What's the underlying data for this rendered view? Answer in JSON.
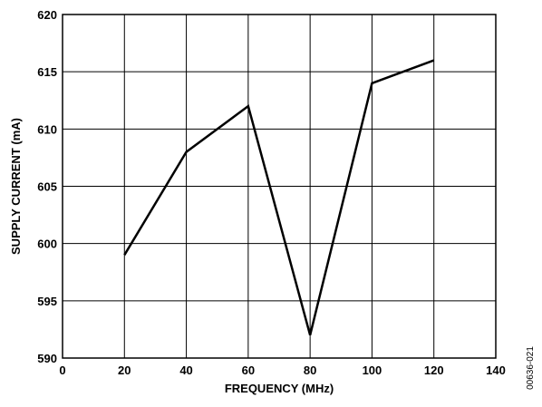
{
  "chart_data": {
    "type": "line",
    "xlabel": "FREQUENCY (MHz)",
    "ylabel": "SUPPLY CURRENT (mA)",
    "xlim": [
      0,
      140
    ],
    "ylim": [
      590,
      620
    ],
    "xticks": [
      0,
      20,
      40,
      60,
      80,
      100,
      120,
      140
    ],
    "yticks": [
      590,
      595,
      600,
      605,
      610,
      615,
      620
    ],
    "grid": true,
    "series": [
      {
        "x": [
          20,
          40,
          60,
          80,
          100,
          120
        ],
        "y": [
          599,
          608,
          612,
          592,
          614,
          616
        ]
      }
    ],
    "figure_id": "00636-021",
    "colors": {
      "line": "#000000",
      "grid": "#000000"
    }
  }
}
